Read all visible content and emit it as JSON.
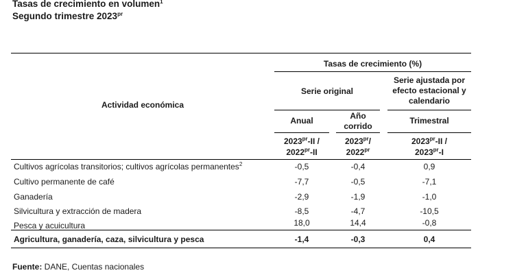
{
  "title": {
    "line1": "Tasas de crecimiento en volumen",
    "line1_sup": "1",
    "line2": "Segundo trimestre 2023",
    "line2_sup": "pr"
  },
  "table": {
    "group_header": "Tasas de crecimiento (%)",
    "activity_header": "Actividad económica",
    "serie_original": "Serie original",
    "serie_ajustada": [
      "Serie ajustada por",
      "efecto estacional y",
      "calendario"
    ],
    "anual": "Anual",
    "ano_corrido": [
      "Año",
      "corrido"
    ],
    "trimestral": "Trimestral",
    "period_anual": {
      "l1a": "2023",
      "s1": "pr",
      "l1b": "-II /",
      "l2a": "2022",
      "s2": "pr",
      "l2b": "-II"
    },
    "period_corrido": {
      "l1a": "2023",
      "s1": "pr",
      "l1b": "/",
      "l2a": "2022",
      "s2": "pr",
      "l2b": ""
    },
    "period_trim": {
      "l1a": "2023",
      "s1": "pr",
      "l1b": "-II /",
      "l2a": "2023",
      "s2": "pr",
      "l2b": "-I"
    },
    "rows": [
      {
        "label": "Cultivos agrícolas transitorios; cultivos agrícolas permanentes",
        "sup": "2",
        "anual": "-0,5",
        "corrido": "-0,4",
        "trimestral": "0,9"
      },
      {
        "label": "Cultivo permanente de café",
        "sup": "",
        "anual": "-7,7",
        "corrido": "-0,5",
        "trimestral": "-7,1"
      },
      {
        "label": "Ganadería",
        "sup": "",
        "anual": "-2,9",
        "corrido": "-1,9",
        "trimestral": "-1,0"
      },
      {
        "label": "Silvicultura y extracción de madera",
        "sup": "",
        "anual": "-8,5",
        "corrido": "-4,7",
        "trimestral": "-10,5"
      },
      {
        "label": "Pesca y acuicultura",
        "sup": "",
        "anual": "18,0",
        "corrido": "14,4",
        "trimestral": "-0,8"
      }
    ],
    "total": {
      "label": "Agricultura, ganadería, caza, silvicultura y pesca",
      "anual": "-1,4",
      "corrido": "-0,3",
      "trimestral": "0,4"
    }
  },
  "footer": {
    "label": "Fuente:",
    "text": " DANE, Cuentas nacionales"
  }
}
